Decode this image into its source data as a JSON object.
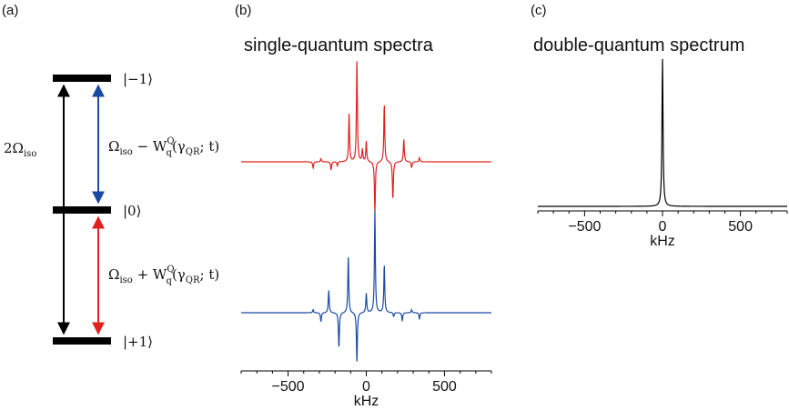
{
  "panels": {
    "a": {
      "label": "(a)"
    },
    "b": {
      "label": "(b)",
      "title": "single-quantum spectra"
    },
    "c": {
      "label": "(c)",
      "title": "double-quantum spectrum"
    }
  },
  "energy_levels": {
    "top": "|−1⟩",
    "middle": "|0⟩",
    "bottom": "|+1⟩",
    "transition_double": {
      "main": "2Ω",
      "sub": "iso"
    },
    "transition_upper": {
      "pre": "Ω",
      "pre_sub": "iso",
      "op": " − W",
      "sup": "Q",
      "sub": "q",
      "arg": "(γ",
      "arg_sub": "QR",
      "tail": "; t)"
    },
    "transition_lower": {
      "pre": "Ω",
      "pre_sub": "iso",
      "op": " + W",
      "sup": "Q",
      "sub": "q",
      "arg": "(γ",
      "arg_sub": "QR",
      "tail": "; t)"
    }
  },
  "colors": {
    "red": "#e0211d",
    "blue": "#1a4aa3",
    "black": "#000000"
  },
  "chart_data": [
    {
      "type": "line",
      "panel": "b",
      "xlabel": "kHz",
      "xlim": [
        -800,
        800
      ],
      "xticks": [
        -500,
        0,
        500
      ],
      "xtick_labels": [
        "−500",
        "0",
        "500"
      ],
      "series": [
        {
          "color": "#e0211d",
          "peaks": [
            {
              "x": -340,
              "y": -0.06
            },
            {
              "x": -290,
              "y": 0.03
            },
            {
              "x": -225,
              "y": -0.08
            },
            {
              "x": -185,
              "y": -0.04
            },
            {
              "x": -110,
              "y": 0.47
            },
            {
              "x": -60,
              "y": 1.0
            },
            {
              "x": -25,
              "y": 0.12
            },
            {
              "x": 0,
              "y": 0.2
            },
            {
              "x": 55,
              "y": -0.5
            },
            {
              "x": 115,
              "y": 0.57
            },
            {
              "x": 170,
              "y": -0.37
            },
            {
              "x": 240,
              "y": 0.22
            },
            {
              "x": 290,
              "y": -0.06
            },
            {
              "x": 340,
              "y": 0.04
            }
          ]
        },
        {
          "color": "#1a4aa3",
          "peaks": [
            {
              "x": -340,
              "y": 0.03
            },
            {
              "x": -290,
              "y": -0.09
            },
            {
              "x": -240,
              "y": 0.22
            },
            {
              "x": -175,
              "y": -0.35
            },
            {
              "x": -115,
              "y": 0.56
            },
            {
              "x": -60,
              "y": -0.49
            },
            {
              "x": 0,
              "y": 0.19
            },
            {
              "x": 55,
              "y": 1.0
            },
            {
              "x": 115,
              "y": 0.47
            },
            {
              "x": 175,
              "y": -0.04
            },
            {
              "x": 230,
              "y": -0.08
            },
            {
              "x": 290,
              "y": 0.03
            },
            {
              "x": 340,
              "y": -0.06
            }
          ]
        }
      ]
    },
    {
      "type": "line",
      "panel": "c",
      "xlabel": "kHz",
      "xlim": [
        -800,
        800
      ],
      "xticks": [
        -500,
        0,
        500
      ],
      "xtick_labels": [
        "−500",
        "0",
        "500"
      ],
      "series": [
        {
          "color": "#000000",
          "peaks": [
            {
              "x": 0,
              "y": 1.0
            }
          ]
        }
      ]
    }
  ]
}
